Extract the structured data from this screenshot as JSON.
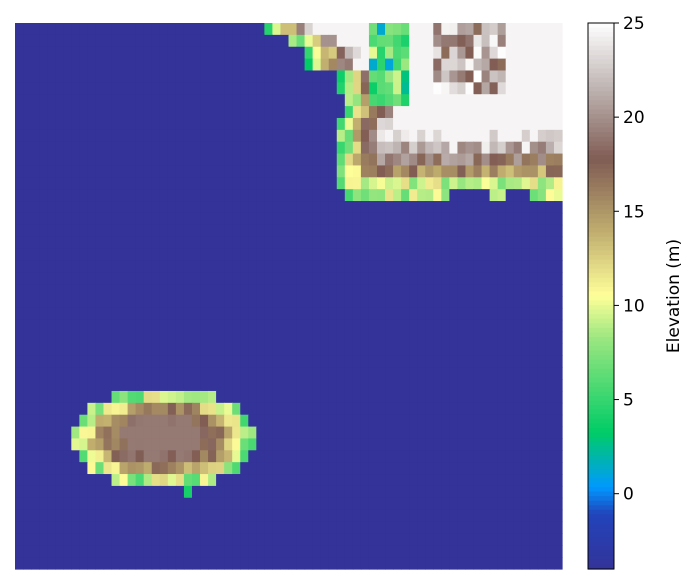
{
  "chart_data": {
    "type": "heatmap",
    "title": "",
    "xlabel": "",
    "ylabel": "",
    "colorbar": {
      "label": "Elevation (m)",
      "range": [
        -4,
        25
      ],
      "ticks": [
        0,
        5,
        10,
        15,
        20,
        25
      ],
      "tick_labels": [
        "0",
        "5",
        "10",
        "15",
        "20",
        "25"
      ],
      "colormap": "terrain"
    },
    "grid": false,
    "axes_visible": false,
    "grid_shape": [
      46,
      68
    ],
    "description_of_values": "elevation per cell in meters; ocean ≈ -4",
    "features": [
      {
        "feature": "ocean",
        "elevation": -4
      },
      {
        "feature": "northeast landmass",
        "elevation_max": 25,
        "cols": [
          31,
          68
        ],
        "rows": [
          0,
          15
        ]
      },
      {
        "feature": "southwest island",
        "elevation_max": 18,
        "cols": [
          7,
          30
        ],
        "rows": [
          31,
          39
        ]
      }
    ]
  }
}
